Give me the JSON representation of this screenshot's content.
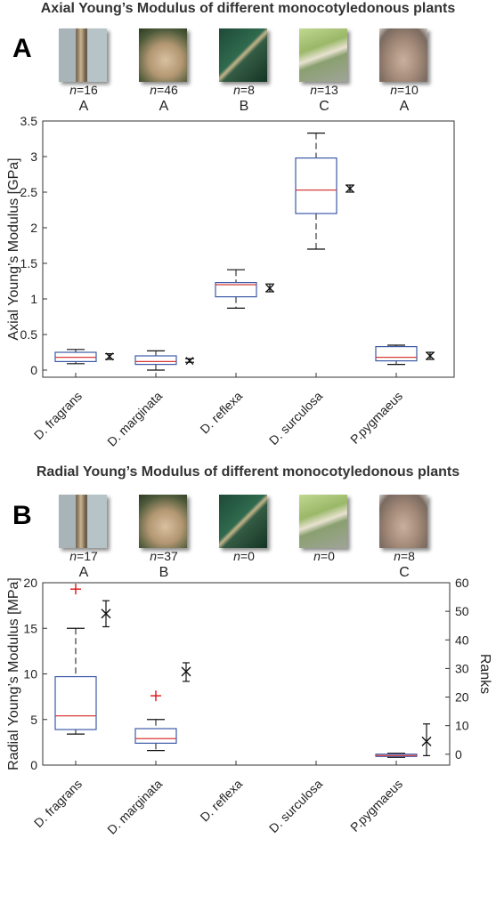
{
  "chart_data": [
    {
      "type": "box",
      "panel": "A",
      "title": "Axial Young’s Modulus of different monocotyledonous plants",
      "ylabel": "Axial Young’s Modulus [GPa]",
      "ylim": [
        -0.1,
        3.5
      ],
      "yticks": [
        0,
        0.5,
        1,
        1.5,
        2,
        2.5,
        3,
        3.5
      ],
      "categories": [
        "D. fragrans",
        "D. marginata",
        "D. reflexa",
        "D. surculosa",
        "P.pygmaeus"
      ],
      "n_labels": [
        "16",
        "46",
        "8",
        "13",
        "10"
      ],
      "groups": [
        "A",
        "A",
        "B",
        "C",
        "A"
      ],
      "boxes": [
        {
          "whisker_low": 0.09,
          "q1": 0.12,
          "median": 0.18,
          "q3": 0.25,
          "whisker_high": 0.29
        },
        {
          "whisker_low": 0.0,
          "q1": 0.08,
          "median": 0.12,
          "q3": 0.2,
          "whisker_high": 0.27
        },
        {
          "whisker_low": 0.87,
          "q1": 1.03,
          "median": 1.2,
          "q3": 1.23,
          "whisker_high": 1.41
        },
        {
          "whisker_low": 1.7,
          "q1": 2.2,
          "median": 2.53,
          "q3": 2.98,
          "whisker_high": 3.33
        },
        {
          "whisker_low": 0.08,
          "q1": 0.13,
          "median": 0.18,
          "q3": 0.33,
          "whisker_high": 0.35
        }
      ],
      "mean_markers": [
        {
          "mean": 0.19,
          "low": 0.15,
          "high": 0.23
        },
        {
          "mean": 0.13,
          "low": 0.11,
          "high": 0.16
        },
        {
          "mean": 1.15,
          "low": 1.1,
          "high": 1.21
        },
        {
          "mean": 2.55,
          "low": 2.5,
          "high": 2.6
        },
        {
          "mean": 0.2,
          "low": 0.15,
          "high": 0.25
        }
      ],
      "outliers": []
    },
    {
      "type": "box",
      "panel": "B",
      "title": "Radial Young’s Modulus of different monocotyledonous plants",
      "ylabel": "Radial Young’s Modulus [MPa]",
      "ylabel_right": "Ranks",
      "ylim": [
        0,
        20
      ],
      "yticks": [
        0,
        5,
        10,
        15,
        20
      ],
      "ylim_right": [
        -3.8,
        60
      ],
      "yticks_right": [
        0,
        10,
        20,
        30,
        40,
        50,
        60
      ],
      "categories": [
        "D. fragrans",
        "D. marginata",
        "D. reflexa",
        "D. surculosa",
        "P.pygmaeus"
      ],
      "n_labels": [
        "17",
        "37",
        "0",
        "0",
        "8"
      ],
      "groups": [
        "A",
        "B",
        "",
        "",
        "C"
      ],
      "boxes": [
        {
          "whisker_low": 3.4,
          "q1": 3.9,
          "median": 5.4,
          "q3": 9.7,
          "whisker_high": 15.0
        },
        {
          "whisker_low": 1.6,
          "q1": 2.4,
          "median": 2.9,
          "q3": 4.0,
          "whisker_high": 5.0
        },
        null,
        null,
        {
          "whisker_low": 0.85,
          "q1": 0.95,
          "median": 1.05,
          "q3": 1.2,
          "whisker_high": 1.3
        }
      ],
      "outliers": [
        {
          "category": "D. fragrans",
          "value": 19.3
        },
        {
          "category": "D. marginata",
          "value": 7.6
        }
      ],
      "rank_markers": [
        {
          "category": "D. fragrans",
          "mean": 49.2,
          "low": 44.6,
          "high": 53.7
        },
        {
          "category": "D. marginata",
          "mean": 28.9,
          "low": 25.5,
          "high": 32.0
        },
        {
          "category": "P.pygmaeus",
          "mean": 4.5,
          "low": -0.5,
          "high": 10.6
        }
      ]
    }
  ],
  "colors": {
    "box": "#3c5aa6",
    "median": "#d83a3a",
    "outlier": "#e01010",
    "marker": "#111111"
  }
}
